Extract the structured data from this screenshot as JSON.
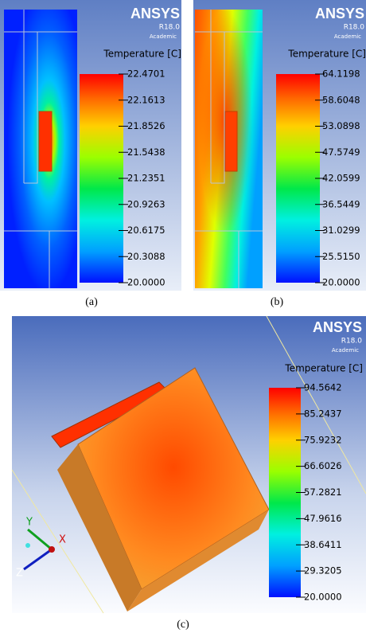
{
  "panels": [
    {
      "logo": "ANSYS",
      "version": "R18.0",
      "edition": "Academic",
      "legend_title": "Temperature [C]",
      "legend_labels": [
        "22.4701",
        "22.1613",
        "21.8526",
        "21.5438",
        "21.2351",
        "20.9263",
        "20.6175",
        "20.3088",
        "20.0000"
      ],
      "caption": "(a)"
    },
    {
      "logo": "ANSYS",
      "version": "R18.0",
      "edition": "Academic",
      "legend_title": "Temperature [C]",
      "legend_labels": [
        "64.1198",
        "58.6048",
        "53.0898",
        "47.5749",
        "42.0599",
        "36.5449",
        "31.0299",
        "25.5150",
        "20.0000"
      ],
      "caption": "(b)"
    },
    {
      "logo": "ANSYS",
      "version": "R18.0",
      "edition": "Academic",
      "legend_title": "Temperature [C]",
      "legend_labels": [
        "94.5642",
        "85.2437",
        "75.9232",
        "66.6026",
        "57.2821",
        "47.9616",
        "38.6411",
        "29.3205",
        "20.0000"
      ],
      "caption": "(c)",
      "triad": [
        "X",
        "Y",
        "Z"
      ]
    }
  ]
}
